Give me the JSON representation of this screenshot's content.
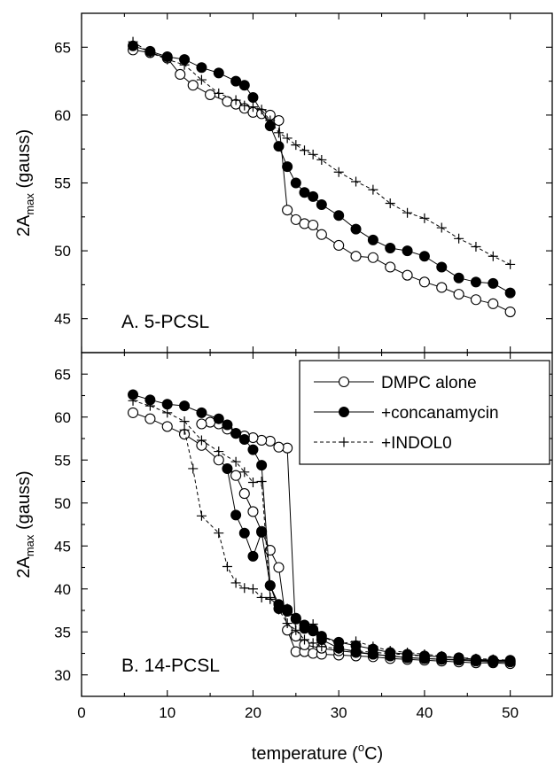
{
  "chart_data": [
    {
      "panel": "A",
      "type": "line",
      "annotation": "A. 5-PCSL",
      "xlabel": "",
      "ylabel": "2A",
      "ylabel_sub": "max",
      "ylabel_tail": " (gauss)",
      "xlim": [
        0,
        55
      ],
      "ylim": [
        42.5,
        67.5
      ],
      "yticks": [
        45,
        50,
        55,
        60,
        65
      ],
      "series": [
        {
          "name": "DMPC alone",
          "marker": "open-circle",
          "line": "solid",
          "points": [
            [
              6,
              64.8
            ],
            [
              8,
              64.6
            ],
            [
              10,
              64.2
            ],
            [
              11.5,
              63.0
            ],
            [
              13,
              62.2
            ],
            [
              15,
              61.5
            ],
            [
              17,
              61.0
            ],
            [
              18,
              60.8
            ],
            [
              19,
              60.5
            ],
            [
              20,
              60.2
            ],
            [
              21,
              60.1
            ],
            [
              22,
              60.0
            ],
            [
              23,
              59.6
            ],
            [
              24,
              53.0
            ],
            [
              25,
              52.3
            ],
            [
              26,
              52.0
            ],
            [
              27,
              51.9
            ],
            [
              28,
              51.2
            ],
            [
              30,
              50.4
            ],
            [
              32,
              49.6
            ],
            [
              34,
              49.5
            ],
            [
              36,
              48.8
            ],
            [
              38,
              48.2
            ],
            [
              40,
              47.7
            ],
            [
              42,
              47.3
            ],
            [
              44,
              46.8
            ],
            [
              46,
              46.4
            ],
            [
              48,
              46.1
            ],
            [
              50,
              45.5
            ]
          ]
        },
        {
          "name": "+concanamycin",
          "marker": "filled-circle",
          "line": "solid",
          "points": [
            [
              6,
              65.1
            ],
            [
              8,
              64.7
            ],
            [
              10,
              64.3
            ],
            [
              12,
              64.1
            ],
            [
              14,
              63.5
            ],
            [
              16,
              63.1
            ],
            [
              18,
              62.5
            ],
            [
              19,
              62.2
            ],
            [
              20,
              61.3
            ],
            [
              22,
              59.2
            ],
            [
              23,
              57.7
            ],
            [
              24,
              56.2
            ],
            [
              25,
              55.0
            ],
            [
              26,
              54.3
            ],
            [
              27,
              54.0
            ],
            [
              28,
              53.4
            ],
            [
              30,
              52.6
            ],
            [
              32,
              51.6
            ],
            [
              34,
              50.8
            ],
            [
              36,
              50.2
            ],
            [
              38,
              50.0
            ],
            [
              40,
              49.6
            ],
            [
              42,
              48.8
            ],
            [
              44,
              48.0
            ],
            [
              46,
              47.7
            ],
            [
              48,
              47.6
            ],
            [
              50,
              46.9
            ]
          ]
        },
        {
          "name": "+INDOL0",
          "marker": "plus",
          "line": "dashed",
          "points": [
            [
              6,
              65.4
            ],
            [
              8,
              64.6
            ],
            [
              10,
              64.1
            ],
            [
              12,
              63.7
            ],
            [
              14,
              62.6
            ],
            [
              16,
              61.6
            ],
            [
              18,
              61.1
            ],
            [
              19,
              60.7
            ],
            [
              20,
              60.6
            ],
            [
              21,
              60.4
            ],
            [
              22,
              59.6
            ],
            [
              23,
              58.7
            ],
            [
              24,
              58.3
            ],
            [
              25,
              57.8
            ],
            [
              26,
              57.4
            ],
            [
              27,
              57.1
            ],
            [
              28,
              56.7
            ],
            [
              30,
              55.8
            ],
            [
              32,
              55.1
            ],
            [
              34,
              54.5
            ],
            [
              36,
              53.5
            ],
            [
              38,
              52.8
            ],
            [
              40,
              52.4
            ],
            [
              42,
              51.7
            ],
            [
              44,
              50.9
            ],
            [
              46,
              50.3
            ],
            [
              48,
              49.6
            ],
            [
              50,
              49.0
            ]
          ]
        }
      ]
    },
    {
      "panel": "B",
      "type": "line",
      "annotation": "B. 14-PCSL",
      "xlabel": "temperature (",
      "xlabel_sup": "o",
      "xlabel_tail": "C)",
      "ylabel": "2A",
      "ylabel_sub": "max",
      "ylabel_tail": " (gauss)",
      "xlim": [
        0,
        55
      ],
      "xticks": [
        0,
        10,
        20,
        30,
        40,
        50
      ],
      "ylim": [
        27.5,
        67.5
      ],
      "yticks": [
        30,
        35,
        40,
        45,
        50,
        55,
        60,
        65
      ],
      "legend_position": "top-right",
      "note": "hysteresis loops; each series drawn as one connected path",
      "series": [
        {
          "name": "DMPC alone",
          "marker": "open-circle",
          "line": "solid",
          "points": [
            [
              6,
              60.5
            ],
            [
              8,
              59.8
            ],
            [
              10,
              58.9
            ],
            [
              12,
              58.0
            ],
            [
              14,
              56.7
            ],
            [
              16,
              55.0
            ],
            [
              18,
              53.2
            ],
            [
              19,
              51.1
            ],
            [
              20,
              49.0
            ],
            [
              21,
              46.7
            ],
            [
              22,
              44.5
            ],
            [
              23,
              42.5
            ],
            [
              24,
              35.2
            ],
            [
              25,
              32.7
            ],
            [
              26,
              32.7
            ],
            [
              27,
              32.5
            ],
            [
              28,
              32.4
            ],
            [
              30,
              32.3
            ],
            [
              32,
              32.2
            ],
            [
              34,
              32.1
            ],
            [
              36,
              31.9
            ],
            [
              38,
              31.8
            ],
            [
              40,
              31.7
            ],
            [
              42,
              31.6
            ],
            [
              44,
              31.5
            ],
            [
              46,
              31.4
            ],
            [
              48,
              31.4
            ],
            [
              50,
              31.3
            ],
            [
              50,
              31.5
            ],
            [
              48,
              31.5
            ],
            [
              46,
              31.6
            ],
            [
              44,
              31.7
            ],
            [
              42,
              31.8
            ],
            [
              40,
              31.9
            ],
            [
              38,
              32.0
            ],
            [
              36,
              32.2
            ],
            [
              34,
              32.4
            ],
            [
              32,
              32.6
            ],
            [
              30,
              32.8
            ],
            [
              28,
              33.1
            ],
            [
              26,
              33.5
            ],
            [
              25,
              34.5
            ],
            [
              24,
              56.4
            ],
            [
              23,
              56.5
            ],
            [
              22,
              57.2
            ],
            [
              21,
              57.3
            ],
            [
              20,
              57.6
            ],
            [
              19,
              57.8
            ],
            [
              18,
              58.1
            ],
            [
              17,
              58.6
            ],
            [
              16,
              59.2
            ],
            [
              15,
              59.4
            ],
            [
              14,
              59.2
            ]
          ]
        },
        {
          "name": "+concanamycin",
          "marker": "filled-circle",
          "line": "solid",
          "points": [
            [
              6,
              62.6
            ],
            [
              8,
              62.0
            ],
            [
              10,
              61.5
            ],
            [
              12,
              61.3
            ],
            [
              14,
              60.5
            ],
            [
              16,
              59.8
            ],
            [
              17,
              59.1
            ],
            [
              18,
              58.1
            ],
            [
              19,
              57.4
            ],
            [
              20,
              56.2
            ],
            [
              21,
              54.4
            ],
            [
              22,
              40.4
            ],
            [
              23,
              37.7
            ],
            [
              24,
              37.4
            ],
            [
              25,
              36.5
            ],
            [
              26,
              35.4
            ],
            [
              27,
              35.1
            ],
            [
              28,
              34.1
            ],
            [
              30,
              33.1
            ],
            [
              32,
              32.7
            ],
            [
              34,
              32.4
            ],
            [
              36,
              32.2
            ],
            [
              38,
              32.0
            ],
            [
              40,
              31.9
            ],
            [
              42,
              31.8
            ],
            [
              44,
              31.8
            ],
            [
              46,
              31.7
            ],
            [
              48,
              31.6
            ],
            [
              50,
              31.6
            ],
            [
              50,
              31.7
            ],
            [
              48,
              31.7
            ],
            [
              46,
              31.8
            ],
            [
              44,
              32.0
            ],
            [
              42,
              32.1
            ],
            [
              40,
              32.2
            ],
            [
              38,
              32.4
            ],
            [
              36,
              32.6
            ],
            [
              34,
              33.0
            ],
            [
              32,
              33.4
            ],
            [
              30,
              33.8
            ],
            [
              28,
              34.5
            ],
            [
              27,
              35.3
            ],
            [
              26,
              35.8
            ],
            [
              25,
              36.6
            ],
            [
              24,
              37.6
            ],
            [
              23,
              38.2
            ],
            [
              22,
              40.4
            ],
            [
              21,
              46.6
            ],
            [
              20,
              43.8
            ],
            [
              19,
              46.5
            ],
            [
              18,
              48.6
            ],
            [
              17,
              54.0
            ]
          ]
        },
        {
          "name": "+INDOL0",
          "marker": "plus",
          "line": "dashed",
          "points": [
            [
              6,
              61.9
            ],
            [
              8,
              61.3
            ],
            [
              10,
              60.5
            ],
            [
              12,
              59.5
            ],
            [
              14,
              57.3
            ],
            [
              16,
              56.0
            ],
            [
              18,
              54.8
            ],
            [
              19,
              53.6
            ],
            [
              20,
              52.4
            ],
            [
              21,
              52.5
            ],
            [
              22,
              39.0
            ],
            [
              23,
              37.6
            ],
            [
              24,
              36.0
            ],
            [
              25,
              35.2
            ],
            [
              26,
              34.1
            ],
            [
              27,
              33.7
            ],
            [
              28,
              33.3
            ],
            [
              30,
              33.0
            ],
            [
              32,
              32.8
            ],
            [
              34,
              32.6
            ],
            [
              36,
              32.5
            ],
            [
              38,
              32.3
            ],
            [
              40,
              32.2
            ],
            [
              42,
              32.1
            ],
            [
              44,
              32.0
            ],
            [
              46,
              31.9
            ],
            [
              48,
              31.8
            ],
            [
              50,
              31.7
            ],
            [
              50,
              31.6
            ],
            [
              48,
              31.7
            ],
            [
              46,
              31.8
            ],
            [
              44,
              32.0
            ],
            [
              42,
              32.2
            ],
            [
              40,
              32.4
            ],
            [
              38,
              32.6
            ],
            [
              36,
              32.8
            ],
            [
              34,
              33.3
            ],
            [
              32,
              33.9
            ],
            [
              30,
              33.6
            ],
            [
              28,
              34.5
            ],
            [
              27,
              35.9
            ],
            [
              26,
              35.4
            ],
            [
              25,
              36.5
            ],
            [
              24,
              37.7
            ],
            [
              23,
              38.2
            ],
            [
              22,
              38.8
            ],
            [
              21,
              39.0
            ],
            [
              20,
              40.0
            ],
            [
              19,
              40.1
            ],
            [
              18,
              40.7
            ],
            [
              17,
              42.6
            ],
            [
              16,
              46.5
            ],
            [
              14,
              48.5
            ],
            [
              13,
              54.0
            ],
            [
              12,
              58.5
            ]
          ]
        }
      ]
    }
  ]
}
